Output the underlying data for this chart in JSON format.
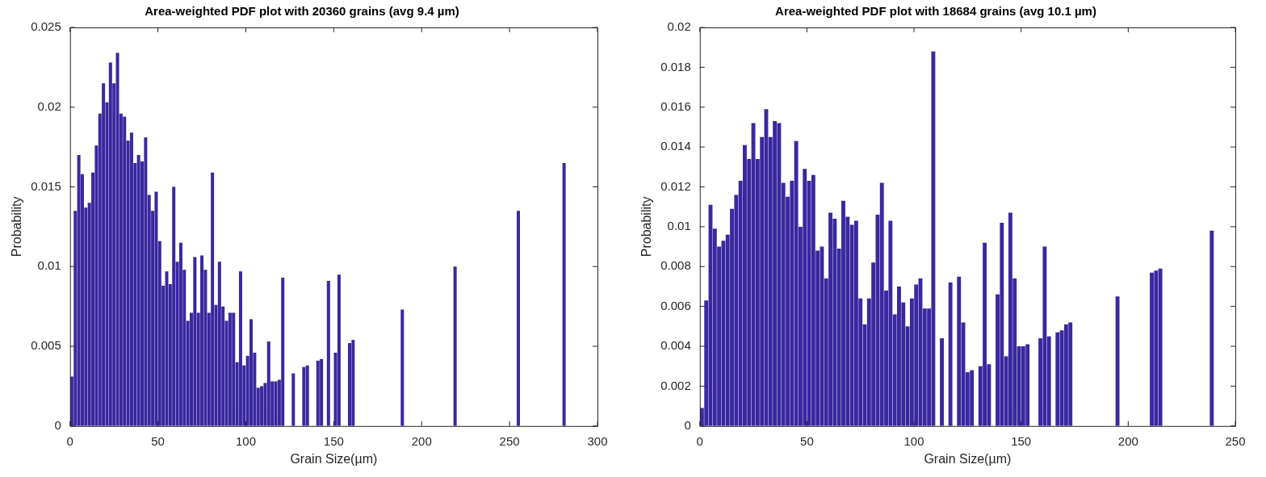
{
  "chart_data": [
    {
      "type": "bar",
      "title": "Area-weighted PDF plot with 20360 grains (avg 9.4 µm)",
      "xlabel": "Grain Size(µm)",
      "ylabel": "Probability",
      "color": "#3a28a0",
      "x": [
        1,
        3,
        5,
        7,
        9,
        11,
        13,
        15,
        17,
        19,
        21,
        23,
        25,
        27,
        29,
        31,
        33,
        35,
        37,
        39,
        41,
        43,
        45,
        47,
        49,
        51,
        53,
        55,
        57,
        59,
        61,
        63,
        65,
        67,
        69,
        71,
        73,
        75,
        77,
        79,
        81,
        83,
        85,
        87,
        89,
        91,
        93,
        95,
        97,
        99,
        101,
        103,
        105,
        107,
        109,
        111,
        113,
        115,
        117,
        119,
        121,
        127,
        133,
        135,
        141,
        143,
        147,
        151,
        153,
        159,
        161,
        189,
        219,
        255,
        281
      ],
      "values": [
        0.0031,
        0.0135,
        0.017,
        0.0158,
        0.0137,
        0.014,
        0.0159,
        0.0176,
        0.0196,
        0.0215,
        0.0203,
        0.0228,
        0.0215,
        0.0234,
        0.0196,
        0.0194,
        0.0179,
        0.0184,
        0.0165,
        0.017,
        0.0166,
        0.0181,
        0.0145,
        0.0135,
        0.0147,
        0.0116,
        0.0088,
        0.0097,
        0.0089,
        0.015,
        0.0103,
        0.0115,
        0.0098,
        0.0066,
        0.0071,
        0.0106,
        0.0071,
        0.0107,
        0.0098,
        0.0071,
        0.0159,
        0.0076,
        0.0103,
        0.0075,
        0.0066,
        0.0071,
        0.0071,
        0.004,
        0.0097,
        0.0038,
        0.0044,
        0.0067,
        0.0046,
        0.0024,
        0.0025,
        0.0027,
        0.0053,
        0.0028,
        0.0028,
        0.0029,
        0.0093,
        0.0033,
        0.0037,
        0.0038,
        0.0041,
        0.0042,
        0.0091,
        0.0046,
        0.0095,
        0.0052,
        0.0054,
        0.0073,
        0.01,
        0.0135,
        0.0165
      ],
      "xlim": [
        0,
        300
      ],
      "xticks": [
        0,
        50,
        100,
        150,
        200,
        250,
        300
      ],
      "ylim": [
        0,
        0.025
      ],
      "yticks": [
        0,
        0.005,
        0.01,
        0.015,
        0.02,
        0.025
      ]
    },
    {
      "type": "bar",
      "title": "Area-weighted PDF plot with 18684 grains (avg 10.1 µm)",
      "xlabel": "Grain Size(µm)",
      "ylabel": "Probability",
      "color": "#3a28a0",
      "x": [
        1,
        3,
        5,
        7,
        9,
        11,
        13,
        15,
        17,
        19,
        21,
        23,
        25,
        27,
        29,
        31,
        33,
        35,
        37,
        39,
        41,
        43,
        45,
        47,
        49,
        51,
        53,
        55,
        57,
        59,
        61,
        63,
        65,
        67,
        69,
        71,
        73,
        75,
        77,
        79,
        81,
        83,
        85,
        87,
        89,
        91,
        93,
        95,
        97,
        99,
        101,
        103,
        105,
        107,
        109,
        113,
        117,
        121,
        123,
        125,
        127,
        131,
        133,
        135,
        139,
        141,
        143,
        145,
        147,
        149,
        151,
        153,
        159,
        161,
        163,
        167,
        169,
        171,
        173,
        195,
        211,
        213,
        215,
        239
      ],
      "values": [
        0.0009,
        0.0063,
        0.0111,
        0.0099,
        0.009,
        0.0093,
        0.0096,
        0.0109,
        0.0116,
        0.0123,
        0.0141,
        0.0134,
        0.0152,
        0.0134,
        0.0145,
        0.0159,
        0.0145,
        0.0153,
        0.0152,
        0.0122,
        0.0115,
        0.0123,
        0.0143,
        0.01,
        0.0129,
        0.0123,
        0.0126,
        0.0088,
        0.009,
        0.0074,
        0.0107,
        0.0104,
        0.0089,
        0.0113,
        0.0105,
        0.0101,
        0.0103,
        0.0064,
        0.0051,
        0.0064,
        0.0082,
        0.0106,
        0.0122,
        0.0068,
        0.0103,
        0.0056,
        0.007,
        0.0062,
        0.005,
        0.0064,
        0.0071,
        0.0074,
        0.0059,
        0.0059,
        0.0188,
        0.0044,
        0.0072,
        0.0075,
        0.0052,
        0.0027,
        0.0028,
        0.003,
        0.0092,
        0.0031,
        0.0066,
        0.0102,
        0.0035,
        0.0107,
        0.0074,
        0.004,
        0.004,
        0.0041,
        0.0044,
        0.009,
        0.0045,
        0.0047,
        0.0048,
        0.0051,
        0.0052,
        0.0065,
        0.0077,
        0.0078,
        0.0079,
        0.0098
      ],
      "xlim": [
        0,
        250
      ],
      "xticks": [
        0,
        50,
        100,
        150,
        200,
        250
      ],
      "ylim": [
        0,
        0.02
      ],
      "yticks": [
        0,
        0.002,
        0.004,
        0.006,
        0.008,
        0.01,
        0.012,
        0.014,
        0.016,
        0.018,
        0.02
      ]
    }
  ]
}
